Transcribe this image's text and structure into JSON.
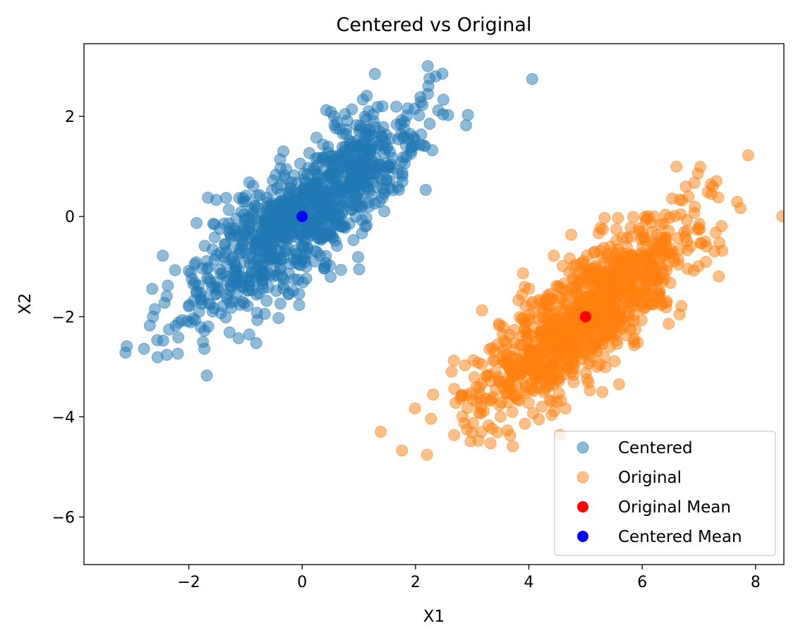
{
  "chart_data": {
    "type": "scatter",
    "title": "Centered vs Original",
    "xlabel": "X1",
    "ylabel": "X2",
    "xlim": [
      -3.85,
      8.5
    ],
    "ylim": [
      -6.95,
      3.45
    ],
    "xticks": [
      -2,
      0,
      2,
      4,
      6,
      8
    ],
    "xtick_labels": [
      "−2",
      "0",
      "2",
      "4",
      "6",
      "8"
    ],
    "yticks": [
      -6,
      -4,
      -2,
      0,
      2
    ],
    "ytick_labels": [
      "−6",
      "−4",
      "−2",
      "0",
      "2"
    ],
    "grid": false,
    "legend_position": "lower right",
    "series": [
      {
        "name": "Centered",
        "color": "#1f77b4",
        "alpha": 0.5,
        "mean": [
          0,
          0
        ],
        "sample": {
          "count": 1000,
          "sd_x": 1.0,
          "sd_y": 1.0,
          "correlation": 0.8
        }
      },
      {
        "name": "Original",
        "color": "#ff7f0e",
        "alpha": 0.5,
        "mean": [
          5,
          -2
        ],
        "sample": {
          "count": 1000,
          "sd_x": 1.0,
          "sd_y": 1.0,
          "correlation": 0.8
        }
      }
    ],
    "means": [
      {
        "name": "Original Mean",
        "color": "#ff0000",
        "x": 5,
        "y": -2
      },
      {
        "name": "Centered Mean",
        "color": "#0000ff",
        "x": 0,
        "y": 0
      }
    ],
    "legend": [
      "Centered",
      "Original",
      "Original Mean",
      "Centered Mean"
    ]
  }
}
